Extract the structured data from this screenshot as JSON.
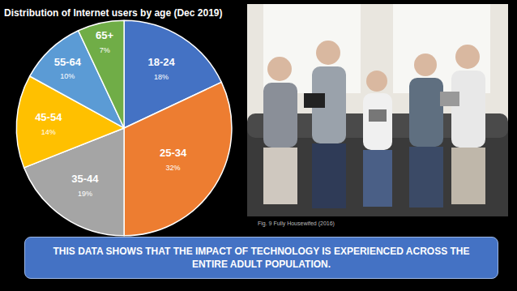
{
  "chart_data": {
    "type": "pie",
    "title": "Distribution of Internet users by age (Dec 2019)",
    "categories": [
      "18-24",
      "25-34",
      "35-44",
      "45-54",
      "55-64",
      "65+"
    ],
    "values": [
      18,
      32,
      19,
      14,
      10,
      7
    ],
    "value_labels": [
      "18%",
      "32%",
      "19%",
      "14%",
      "10%",
      "7%"
    ],
    "colors": [
      "#4472c4",
      "#ed7d31",
      "#a5a5a5",
      "#ffc000",
      "#5b9bd5",
      "#70ad47"
    ],
    "data_labels": true
  },
  "image": {
    "caption": "Fig. 9 Fully Housewifed (2016)"
  },
  "banner": {
    "text": "THIS DATA SHOWS THAT THE IMPACT OF TECHNOLOGY IS EXPERIENCED ACROSS THE ENTIRE ADULT POPULATION."
  }
}
